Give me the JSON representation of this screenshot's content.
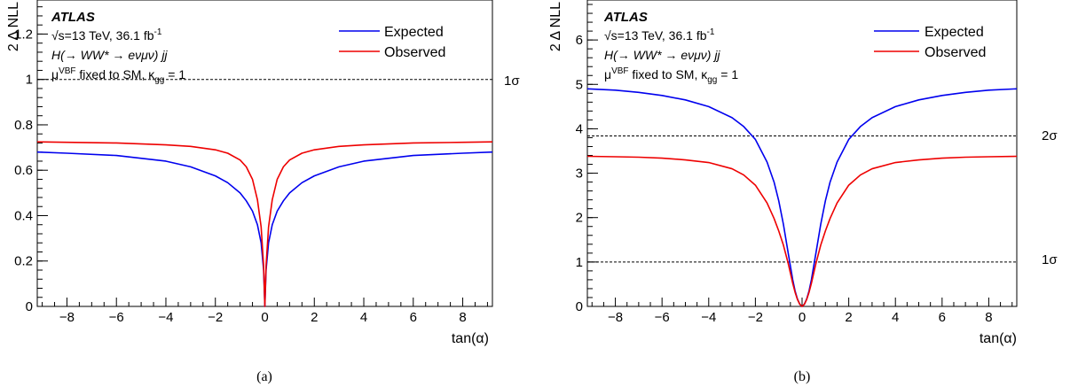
{
  "chart_data": [
    {
      "id": "a",
      "type": "line",
      "caption": "(a)",
      "xlabel": "tan(α)",
      "ylabel": "2 Δ NLL",
      "xlim": [
        -9.2,
        9.2
      ],
      "ylim": [
        0,
        1.35
      ],
      "xticks": [
        "−8",
        "−6",
        "−4",
        "−2",
        "0",
        "2",
        "4",
        "6",
        "8"
      ],
      "xtick_values": [
        -8,
        -6,
        -4,
        -2,
        0,
        2,
        4,
        6,
        8
      ],
      "yticks": [
        "0",
        "0.2",
        "0.4",
        "0.6",
        "0.8",
        "1",
        "1.2"
      ],
      "ytick_values": [
        0,
        0.2,
        0.4,
        0.6,
        0.8,
        1.0,
        1.2
      ],
      "atlas_label": "ATLAS",
      "annotations": {
        "energy": "√s=13 TeV, 36.1 fb",
        "energy_sup": "-1",
        "process": "H(→ WW* → eνμν) jj",
        "mu_prefix": "μ",
        "mu_sup": "VBF",
        "mu_text": " fixed to SM, κ",
        "mu_sub": "gg",
        "mu_suffix": " = 1"
      },
      "hlines": [
        {
          "y": 1.0,
          "label": "1σ"
        }
      ],
      "series": [
        {
          "name": "Expected",
          "color": "#0000ee",
          "x": [
            -9.2,
            -8,
            -6,
            -4,
            -3,
            -2,
            -1.5,
            -1,
            -0.75,
            -0.5,
            -0.3,
            -0.15,
            -0.05,
            0,
            0.05,
            0.15,
            0.3,
            0.5,
            0.75,
            1,
            1.5,
            2,
            3,
            4,
            6,
            8,
            9.2
          ],
          "y": [
            0.68,
            0.675,
            0.665,
            0.64,
            0.615,
            0.575,
            0.545,
            0.5,
            0.465,
            0.42,
            0.36,
            0.28,
            0.16,
            0.0,
            0.16,
            0.28,
            0.36,
            0.42,
            0.465,
            0.5,
            0.545,
            0.575,
            0.615,
            0.64,
            0.665,
            0.675,
            0.68
          ]
        },
        {
          "name": "Observed",
          "color": "#ee0000",
          "x": [
            -9.2,
            -8,
            -6,
            -4,
            -3,
            -2,
            -1.5,
            -1,
            -0.75,
            -0.5,
            -0.3,
            -0.15,
            -0.05,
            0,
            0.05,
            0.15,
            0.3,
            0.5,
            0.75,
            1,
            1.5,
            2,
            3,
            4,
            6,
            8,
            9.2
          ],
          "y": [
            0.725,
            0.723,
            0.72,
            0.712,
            0.705,
            0.69,
            0.675,
            0.645,
            0.615,
            0.56,
            0.47,
            0.35,
            0.18,
            0.0,
            0.18,
            0.35,
            0.47,
            0.56,
            0.615,
            0.645,
            0.675,
            0.69,
            0.705,
            0.712,
            0.72,
            0.723,
            0.725
          ]
        }
      ]
    },
    {
      "id": "b",
      "type": "line",
      "caption": "(b)",
      "xlabel": "tan(α)",
      "ylabel": "2 Δ NLL",
      "xlim": [
        -9.2,
        9.2
      ],
      "ylim": [
        0,
        6.9
      ],
      "xticks": [
        "−8",
        "−6",
        "−4",
        "−2",
        "0",
        "2",
        "4",
        "6",
        "8"
      ],
      "xtick_values": [
        -8,
        -6,
        -4,
        -2,
        0,
        2,
        4,
        6,
        8
      ],
      "yticks": [
        "0",
        "1",
        "2",
        "3",
        "4",
        "5",
        "6"
      ],
      "ytick_values": [
        0,
        1,
        2,
        3,
        4,
        5,
        6
      ],
      "atlas_label": "ATLAS",
      "annotations": {
        "energy": "√s=13 TeV, 36.1 fb",
        "energy_sup": "-1",
        "process": "H(→ WW* → eνμν) jj",
        "mu_prefix": "μ",
        "mu_sup": "VBF",
        "mu_text": " fixed to SM, κ",
        "mu_sub": "gg",
        "mu_suffix": " = 1"
      },
      "hlines": [
        {
          "y": 1.0,
          "label": "1σ"
        },
        {
          "y": 3.84,
          "label": "2σ"
        }
      ],
      "series": [
        {
          "name": "Expected",
          "color": "#0000ee",
          "x": [
            -9.2,
            -8,
            -7,
            -6,
            -5,
            -4,
            -3,
            -2.5,
            -2,
            -1.5,
            -1.2,
            -1,
            -0.8,
            -0.6,
            -0.4,
            -0.3,
            -0.2,
            -0.1,
            0,
            0.1,
            0.2,
            0.3,
            0.4,
            0.6,
            0.8,
            1,
            1.2,
            1.5,
            2,
            2.5,
            3,
            4,
            5,
            6,
            7,
            8,
            9.2
          ],
          "y": [
            4.9,
            4.87,
            4.82,
            4.75,
            4.65,
            4.5,
            4.25,
            4.05,
            3.76,
            3.25,
            2.8,
            2.38,
            1.85,
            1.22,
            0.6,
            0.35,
            0.17,
            0.05,
            0.0,
            0.05,
            0.17,
            0.35,
            0.6,
            1.22,
            1.85,
            2.38,
            2.8,
            3.25,
            3.76,
            4.05,
            4.25,
            4.5,
            4.65,
            4.75,
            4.82,
            4.87,
            4.9
          ]
        },
        {
          "name": "Observed",
          "color": "#ee0000",
          "x": [
            -9.2,
            -8,
            -7,
            -6,
            -5,
            -4,
            -3,
            -2.5,
            -2,
            -1.5,
            -1.2,
            -1,
            -0.8,
            -0.6,
            -0.4,
            -0.3,
            -0.2,
            -0.1,
            0,
            0.1,
            0.2,
            0.3,
            0.4,
            0.6,
            0.8,
            1,
            1.2,
            1.5,
            2,
            2.5,
            3,
            4,
            5,
            6,
            7,
            8,
            9.2
          ],
          "y": [
            3.38,
            3.37,
            3.36,
            3.34,
            3.3,
            3.24,
            3.1,
            2.96,
            2.73,
            2.33,
            1.98,
            1.7,
            1.38,
            0.98,
            0.52,
            0.32,
            0.16,
            0.05,
            0.0,
            0.05,
            0.16,
            0.32,
            0.52,
            0.98,
            1.38,
            1.7,
            1.98,
            2.33,
            2.73,
            2.96,
            3.1,
            3.24,
            3.3,
            3.34,
            3.36,
            3.37,
            3.38
          ]
        }
      ]
    }
  ]
}
